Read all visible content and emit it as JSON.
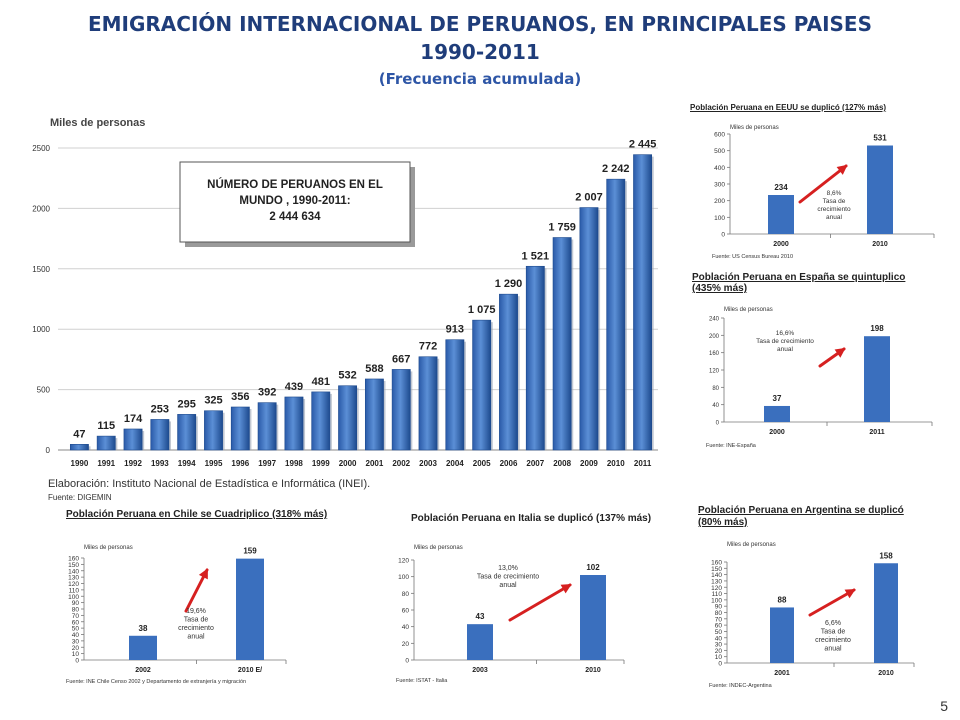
{
  "header": {
    "title_line1": "EMIGRACIÓN INTERNACIONAL DE PERUANOS, EN PRINCIPALES PAISES",
    "title_line2": "1990-2011",
    "subtitle": "(Frecuencia acumulada)"
  },
  "page_number": "5",
  "main_chart_note": {
    "elaboracion": "Elaboración: Instituto Nacional de Estadística e Informática (INEI).",
    "fuente": "Fuente: DIGEMIN"
  },
  "colors": {
    "bar": "#3a6fbe",
    "bar_dark": "#1d4a8e",
    "arrow": "#d62020",
    "title": "#1f3d7a"
  },
  "chart_data": [
    {
      "id": "main",
      "type": "bar",
      "ylabel": "Miles de personas",
      "ylim": [
        0,
        2500
      ],
      "yticks": [
        "0",
        "500",
        "1000",
        "1500",
        "2000",
        "2500"
      ],
      "categories": [
        "1990",
        "1991",
        "1992",
        "1993",
        "1994",
        "1995",
        "1996",
        "1997",
        "1998",
        "1999",
        "2000",
        "2001",
        "2002",
        "2003",
        "2004",
        "2005",
        "2006",
        "2007",
        "2008",
        "2009",
        "2010",
        "2011"
      ],
      "values": [
        47,
        115,
        174,
        253,
        295,
        325,
        356,
        392,
        439,
        481,
        532,
        588,
        667,
        772,
        913,
        1075,
        1290,
        1521,
        1759,
        2007,
        2242,
        2445
      ],
      "value_labels": [
        "47",
        "115",
        "174",
        "253",
        "295",
        "325",
        "356",
        "392",
        "439",
        "481",
        "532",
        "588",
        "667",
        "772",
        "913",
        "1 075",
        "1 290",
        "1 521",
        "1 759",
        "2 007",
        "2 242",
        "2 445"
      ],
      "annotation_box": [
        "NÚMERO DE PERUANOS  EN EL",
        "MUNDO , 1990-2011:",
        "2 444 634"
      ]
    },
    {
      "id": "eeuu",
      "type": "bar",
      "title": "Población Peruana en EEUU se duplicó (127% más)",
      "ylabel": "Miles de personas",
      "ylim": [
        0,
        600
      ],
      "yticks": [
        "0",
        "100",
        "200",
        "300",
        "400",
        "500",
        "600"
      ],
      "categories": [
        "2000",
        "2010"
      ],
      "values": [
        234,
        531
      ],
      "value_labels": [
        "234",
        "531"
      ],
      "annotation": [
        "8,6%",
        "Tasa de",
        "crecimiento",
        "anual"
      ],
      "source": "Fuente:  US Census  Bureau  2010"
    },
    {
      "id": "espana",
      "type": "bar",
      "title_lines": [
        "Población Peruana en España se quintuplico",
        "(435% más)"
      ],
      "ylabel": "Miles de personas",
      "ylim": [
        0,
        240
      ],
      "yticks": [
        "0",
        "40",
        "80",
        "120",
        "160",
        "200",
        "240"
      ],
      "categories": [
        "2000",
        "2011"
      ],
      "values": [
        37,
        198
      ],
      "value_labels": [
        "37",
        "198"
      ],
      "annotation": [
        "16,6%",
        "Tasa de crecimiento",
        "anual"
      ],
      "source": "Fuente:  INE-España"
    },
    {
      "id": "chile",
      "type": "bar",
      "title": "Población Peruana en Chile se Cuadriplico (318% más)",
      "ylabel": "Miles de personas",
      "ylim": [
        0,
        160
      ],
      "yticks": [
        "0",
        "10",
        "20",
        "30",
        "40",
        "50",
        "60",
        "70",
        "80",
        "90",
        "100",
        "110",
        "120",
        "130",
        "140",
        "150",
        "160"
      ],
      "categories": [
        "2002",
        "2010 E/"
      ],
      "values": [
        38,
        159
      ],
      "value_labels": [
        "38",
        "159"
      ],
      "annotation": [
        "19,6%",
        "Tasa de",
        "crecimiento",
        "anual"
      ],
      "source": "Fuente:  INE Chile Censo 2002  y  Departamento  de extranjería  y migración"
    },
    {
      "id": "italia",
      "type": "bar",
      "title": "Población Peruana en Italia se duplicó (137% más)",
      "ylabel": "Miles de personas",
      "ylim": [
        0,
        120
      ],
      "yticks": [
        "0",
        "20",
        "40",
        "60",
        "80",
        "100",
        "120"
      ],
      "categories": [
        "2003",
        "2010"
      ],
      "values": [
        43,
        102
      ],
      "value_labels": [
        "43",
        "102"
      ],
      "annotation": [
        "13,0%",
        "Tasa de crecimiento",
        "anual"
      ],
      "source": "Fuente:  ISTAT  - Italia"
    },
    {
      "id": "argentina",
      "type": "bar",
      "title_lines": [
        "Población Peruana en Argentina se duplicó",
        "(80% más)"
      ],
      "ylabel": "Miles de personas",
      "ylim": [
        0,
        160
      ],
      "yticks": [
        "0",
        "10",
        "20",
        "30",
        "40",
        "50",
        "60",
        "70",
        "80",
        "90",
        "100",
        "110",
        "120",
        "130",
        "140",
        "150",
        "160"
      ],
      "categories": [
        "2001",
        "2010"
      ],
      "values": [
        88,
        158
      ],
      "value_labels": [
        "88",
        "158"
      ],
      "annotation": [
        "6,6%",
        "Tasa de",
        "crecimiento",
        "anual"
      ],
      "source": "Fuente:  INDEC-Argentina"
    }
  ]
}
